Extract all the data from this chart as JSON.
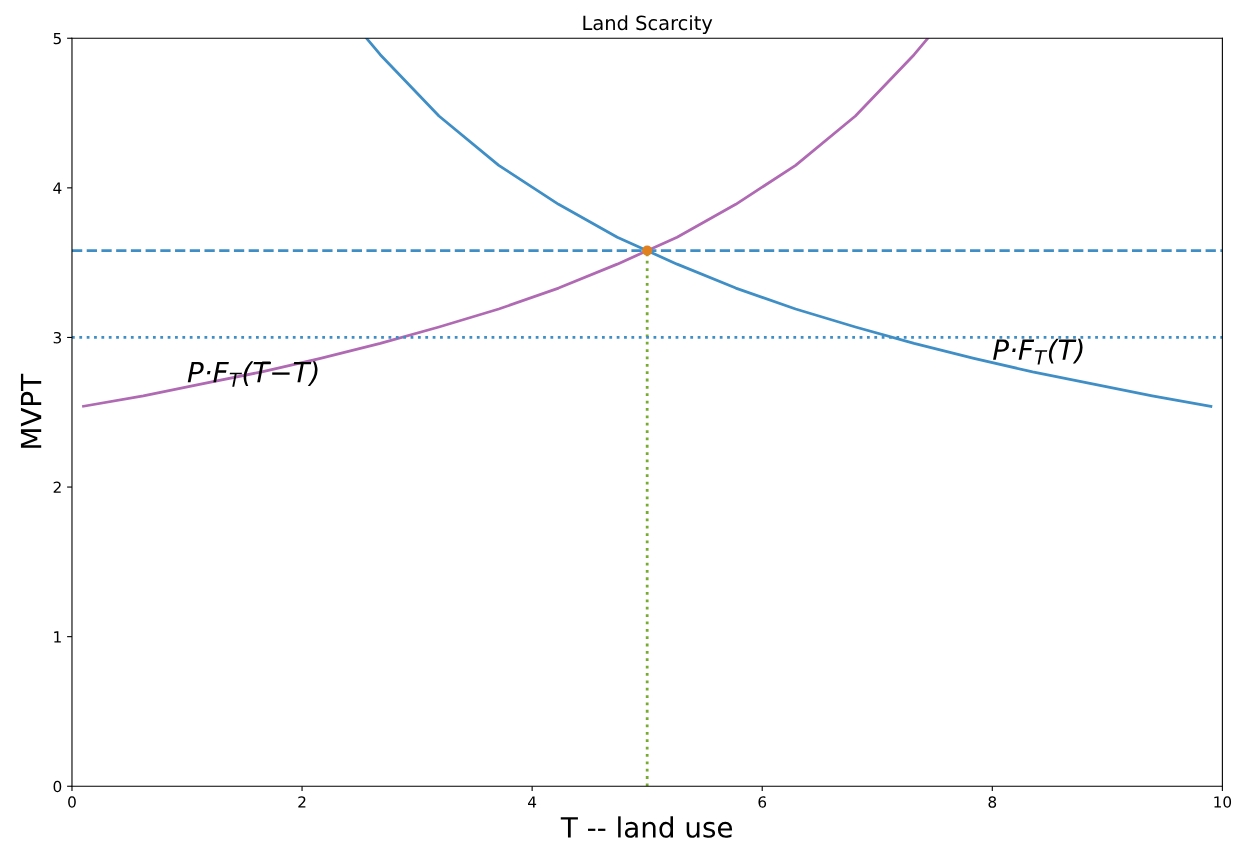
{
  "chart_data": {
    "type": "line",
    "title": "Land Scarcity",
    "xlabel": "T -- land use",
    "ylabel": "MVPT",
    "xlim": [
      0,
      10
    ],
    "ylim": [
      0,
      5
    ],
    "xticks": [
      0,
      2,
      4,
      6,
      8,
      10
    ],
    "yticks": [
      0,
      1,
      2,
      3,
      4,
      5
    ],
    "grid": false,
    "legend": false,
    "series": [
      {
        "color": "#3f8fc6",
        "x": [
          2.56,
          2.68,
          3.19,
          3.71,
          4.23,
          4.74,
          5.26,
          5.77,
          6.29,
          6.81,
          7.32,
          7.84,
          8.35,
          8.87,
          9.39,
          9.9
        ],
        "values": [
          5.0,
          4.89,
          4.48,
          4.15,
          3.89,
          3.67,
          3.49,
          3.33,
          3.19,
          3.07,
          2.96,
          2.86,
          2.77,
          2.69,
          2.61,
          2.54
        ]
      },
      {
        "color": "#b06ab3",
        "x": [
          0.1,
          0.62,
          1.13,
          1.65,
          2.16,
          2.68,
          3.19,
          3.71,
          4.23,
          4.74,
          5.26,
          5.77,
          6.29,
          6.81,
          7.32,
          7.44
        ],
        "values": [
          2.54,
          2.61,
          2.69,
          2.77,
          2.86,
          2.96,
          3.07,
          3.19,
          3.33,
          3.49,
          3.67,
          3.89,
          4.15,
          4.48,
          4.89,
          5.0
        ]
      },
      {
        "color": "#77ac30",
        "line_style": "dotted",
        "x": [
          5,
          5
        ],
        "values": [
          0,
          3.58
        ]
      },
      {
        "type": "scatter",
        "color": "#e0801f",
        "marker": "circle",
        "x": [
          5
        ],
        "values": [
          3.58
        ]
      }
    ],
    "ref_lines": [
      {
        "axis": "y",
        "value": 3.58,
        "color": "#3f8fc6",
        "line_style": "dashed"
      },
      {
        "axis": "y",
        "value": 3.0,
        "color": "#3f8fc6",
        "line_style": "dotted"
      }
    ],
    "annotations": [
      {
        "text": "P·F$_{T}$(T̄−T)",
        "x": 1.0,
        "y": 2.7
      },
      {
        "text": "P·F$_{T}$(T)",
        "x": 8.0,
        "y": 2.85
      }
    ]
  }
}
